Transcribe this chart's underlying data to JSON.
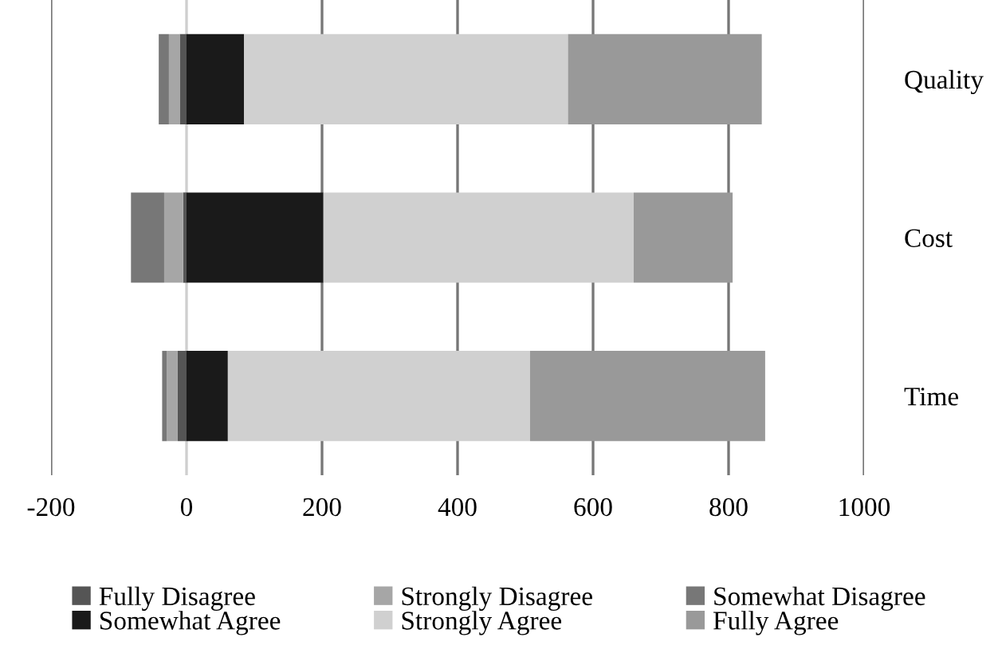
{
  "chart_data": {
    "type": "bar",
    "orientation": "horizontal",
    "stacked": true,
    "categories": [
      "Quality",
      "Cost",
      "Time"
    ],
    "series": [
      {
        "name": "Fully Disagree",
        "color": "#555555",
        "values": [
          -10,
          -5,
          -13
        ]
      },
      {
        "name": "Strongly Disagree",
        "color": "#a6a6a6",
        "values": [
          -16,
          -28,
          -16
        ]
      },
      {
        "name": "Somewhat Disagree",
        "color": "#777777",
        "values": [
          -15,
          -49,
          -7
        ]
      },
      {
        "name": "Somewhat Agree",
        "color": "#1a1a1a",
        "values": [
          85,
          202,
          61
        ]
      },
      {
        "name": "Strongly Agree",
        "color": "#d0d0d0",
        "values": [
          478,
          458,
          446
        ]
      },
      {
        "name": "Fully Agree",
        "color": "#999999",
        "values": [
          286,
          146,
          347
        ]
      }
    ],
    "xlim": [
      -200,
      1000
    ],
    "xticks": [
      -200,
      0,
      200,
      400,
      600,
      800,
      1000
    ],
    "grid": "x",
    "legend": "bottom"
  }
}
